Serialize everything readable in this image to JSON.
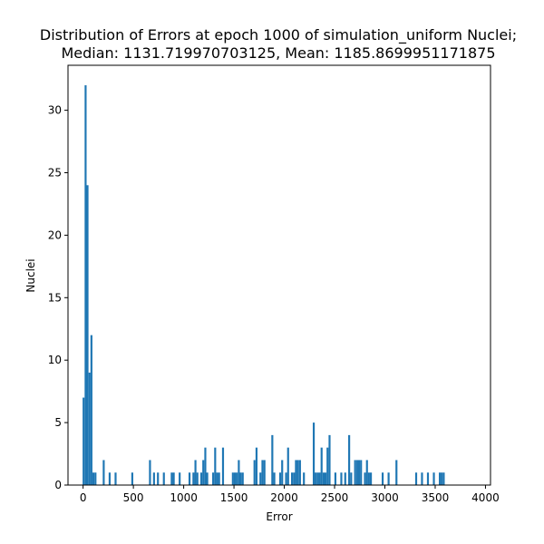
{
  "chart_data": {
    "type": "bar",
    "title": "Distribution of Errors at epoch 1000 of simulation_uniform Nuclei;",
    "subtitle": "Median: 1131.719970703125, Mean: 1185.8699951171875",
    "xlabel": "Error",
    "ylabel": "Nuclei",
    "xlim": [
      -150,
      4050
    ],
    "ylim": [
      0,
      33.6
    ],
    "xticks": [
      0,
      500,
      1000,
      1500,
      2000,
      2500,
      3000,
      3500,
      4000
    ],
    "yticks": [
      0,
      5,
      10,
      15,
      20,
      25,
      30
    ],
    "bin_width": 19.6,
    "bar_color": "#1f77b4",
    "grid": false,
    "x": [
      5,
      25,
      44,
      64,
      83,
      103,
      123,
      205,
      264,
      323,
      489,
      665,
      705,
      744,
      803,
      881,
      901,
      960,
      1058,
      1097,
      1117,
      1136,
      1175,
      1195,
      1215,
      1234,
      1293,
      1313,
      1332,
      1352,
      1391,
      1489,
      1509,
      1528,
      1548,
      1567,
      1587,
      1704,
      1724,
      1763,
      1783,
      1803,
      1881,
      1901,
      1959,
      1979,
      2018,
      2038,
      2077,
      2097,
      2116,
      2136,
      2156,
      2195,
      2293,
      2312,
      2332,
      2352,
      2371,
      2391,
      2410,
      2430,
      2450,
      2508,
      2567,
      2606,
      2645,
      2665,
      2704,
      2724,
      2743,
      2763,
      2802,
      2822,
      2841,
      2861,
      2978,
      3037,
      3115,
      3311,
      3369,
      3428,
      3487,
      3546,
      3565,
      3585
    ],
    "values": [
      7,
      32,
      24,
      9,
      12,
      1,
      1,
      2,
      1,
      1,
      1,
      2,
      1,
      1,
      1,
      1,
      1,
      1,
      1,
      1,
      2,
      1,
      1,
      2,
      3,
      1,
      1,
      3,
      1,
      1,
      3,
      1,
      1,
      1,
      2,
      1,
      1,
      2,
      3,
      1,
      2,
      2,
      4,
      1,
      1,
      2,
      1,
      3,
      1,
      1,
      2,
      2,
      2,
      1,
      5,
      1,
      1,
      1,
      3,
      1,
      1,
      3,
      4,
      1,
      1,
      1,
      4,
      1,
      2,
      2,
      2,
      2,
      1,
      2,
      1,
      1,
      1,
      1,
      2,
      1,
      1,
      1,
      1,
      1,
      1,
      1
    ]
  }
}
